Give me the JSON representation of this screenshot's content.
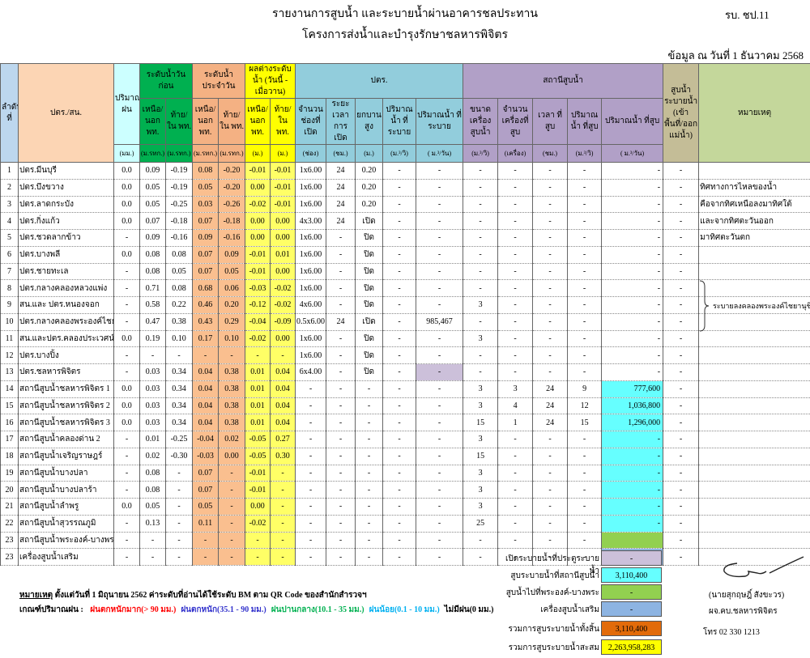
{
  "header": {
    "title": "รายงานการสูบน้ำ และระบายน้ำผ่านอาคารชลประทาน",
    "form_code": "รบ. ชป.11",
    "subtitle": "โครงการส่งน้ำและบำรุงรักษาชลหารพิจิตร",
    "date_info": "ข้อมูล ณ วันที่  1 ธันวาคม 2568"
  },
  "table": {
    "group_headers": [
      "ลำดับที่",
      "ปตร./สน.",
      "ปริมาณฝน",
      "ระดับน้ำวันก่อน",
      "ระดับน้ำประจำวัน",
      "ผลต่างระดับน้ำ (วันนี้ - เมื่อวาน)",
      "ปตร.",
      "สถานีสูบน้ำ",
      "สูบน้ำระบายน้ำ (เข้าพื้นที่/ออกแม่น้ำ)",
      "หมายเหตุ"
    ],
    "sub_headers": [
      "เหนือ/ นอก พท.",
      "ท้าย/ ใน พท.",
      "เหนือ/ นอก พท.",
      "ท้าย/ ใน พท.",
      "เหนือ/ นอก พท.",
      "ท้าย/ ใน พท.",
      "จำนวน ช่องที่เปิด",
      "ระยะเวลา การเปิด",
      "ยกบาน สูง",
      "ปริมาณน้ำ ที่ระบาย",
      "ปริมาณน้ำ ที่ระบาย",
      "ขนาดเครื่อง สูบน้ำ",
      "จำนวน เครื่องที่สูบ",
      "เวลา ที่สูบ",
      "ปริมาณน้ำ ที่สูบ",
      "ปริมาณน้ำ ที่สูบ"
    ],
    "units": [
      "(มม.)",
      "(ม.รทก.)",
      "(ม.รทก.)",
      "(ม.รทก.)",
      "(ม.รทก.)",
      "(ม.)",
      "(ม.)",
      "(ช่อง)",
      "(ชม.)",
      "(ม.)",
      "(ม.³/วิ)",
      "( ม.³/วัน)",
      "(ม.³/วิ)",
      "(เครื่อง)",
      "(ชม.)",
      "(ม.³/วิ)",
      "( ม.³/วัน)"
    ],
    "rows": [
      {
        "cells": [
          "1",
          "ปตร.มีนบุรี",
          "0.0",
          "0.09",
          "-0.19",
          "0.08",
          "-0.20",
          "-0.01",
          "-0.01",
          "1x6.00",
          "24",
          "0.20",
          "-",
          "-",
          "-",
          "-",
          "-",
          "-",
          "-",
          "-"
        ]
      },
      {
        "cells": [
          "2",
          "ปตร.บึงขวาง",
          "0.0",
          "0.05",
          "-0.19",
          "0.05",
          "-0.20",
          "0.00",
          "-0.01",
          "1x6.00",
          "24",
          "0.20",
          "-",
          "-",
          "-",
          "-",
          "-",
          "-",
          "-",
          "-"
        ],
        "remark": "ทิศทางการไหลของน้ำ"
      },
      {
        "cells": [
          "3",
          "ปตร.ลาดกระบัง",
          "0.0",
          "0.05",
          "-0.25",
          "0.03",
          "-0.26",
          "-0.02",
          "-0.01",
          "1x6.00",
          "24",
          "0.20",
          "-",
          "-",
          "-",
          "-",
          "-",
          "-",
          "-",
          "-"
        ],
        "remark": "คือจากทิศเหนือลงมาทิศใต้"
      },
      {
        "cells": [
          "4",
          "ปตร.กิ่งแก้ว",
          "0.0",
          "0.07",
          "-0.18",
          "0.07",
          "-0.18",
          "0.00",
          "0.00",
          "4x3.00",
          "24",
          "เปิด",
          "-",
          "-",
          "-",
          "-",
          "-",
          "-",
          "-",
          "-"
        ],
        "remark": "และจากทิศตะวันออก"
      },
      {
        "cells": [
          "5",
          "ปตร.ชวดลากข้าว",
          "-",
          "0.09",
          "-0.16",
          "0.09",
          "-0.16",
          "0.00",
          "0.00",
          "1x6.00",
          "-",
          "ปิด",
          "-",
          "-",
          "-",
          "-",
          "-",
          "-",
          "-",
          "-"
        ],
        "remark": "มาทิศตะวันตก"
      },
      {
        "cells": [
          "6",
          "ปตร.บางพลี",
          "0.0",
          "0.08",
          "0.08",
          "0.07",
          "0.09",
          "-0.01",
          "0.01",
          "1x6.00",
          "-",
          "ปิด",
          "-",
          "-",
          "-",
          "-",
          "-",
          "-",
          "-",
          "-"
        ]
      },
      {
        "cells": [
          "7",
          "ปตร.ชายทะเล",
          "-",
          "0.08",
          "0.05",
          "0.07",
          "0.05",
          "-0.01",
          "0.00",
          "1x6.00",
          "-",
          "ปิด",
          "-",
          "-",
          "-",
          "-",
          "-",
          "-",
          "-",
          "-"
        ]
      },
      {
        "cells": [
          "8",
          "ปตร.กลางคลองหลวงแพ่ง",
          "-",
          "0.71",
          "0.08",
          "0.68",
          "0.06",
          "-0.03",
          "-0.02",
          "1x6.00",
          "-",
          "ปิด",
          "-",
          "-",
          "-",
          "-",
          "-",
          "-",
          "-",
          "-"
        ]
      },
      {
        "cells": [
          "9",
          "สน.และ ปตร.หนองจอก",
          "-",
          "0.58",
          "0.22",
          "0.46",
          "0.20",
          "-0.12",
          "-0.02",
          "4x6.00",
          "-",
          "ปิด",
          "-",
          "-",
          "3",
          "-",
          "-",
          "-",
          "-",
          "-"
        ]
      },
      {
        "cells": [
          "10",
          "ปตร.กลางคลองพระองค์ไชยานุชิต",
          "-",
          "0.47",
          "0.38",
          "0.43",
          "0.29",
          "-0.04",
          "-0.09",
          "0.5x6.00",
          "24",
          "เปิด",
          "-",
          "985,467",
          "-",
          "-",
          "-",
          "-",
          "-",
          "-"
        ]
      },
      {
        "cells": [
          "11",
          "สน.และปตร.คลองประเวศน์ฯ",
          "0.0",
          "0.19",
          "0.10",
          "0.17",
          "0.10",
          "-0.02",
          "0.00",
          "1x6.00",
          "-",
          "ปิด",
          "-",
          "-",
          "3",
          "-",
          "-",
          "-",
          "-",
          "-"
        ]
      },
      {
        "cells": [
          "12",
          "ปตร.บางปิ้ง",
          "-",
          "-",
          "-",
          "-",
          "-",
          "-",
          "-",
          "1x6.00",
          "-",
          "ปิด",
          "-",
          "-",
          "-",
          "-",
          "-",
          "-",
          "-",
          "-"
        ]
      },
      {
        "cells": [
          "13",
          "ปตร.ชลหารพิจิตร",
          "-",
          "0.03",
          "0.34",
          "0.04",
          "0.38",
          "0.01",
          "0.04",
          "6x4.00",
          "-",
          "ปิด",
          "-",
          "-",
          "-",
          "-",
          "-",
          "-",
          "-",
          "-"
        ]
      },
      {
        "cells": [
          "14",
          "สถานีสูบน้ำชลหารพิจิตร 1",
          "0.0",
          "0.03",
          "0.34",
          "0.04",
          "0.38",
          "0.01",
          "0.04",
          "-",
          "-",
          "-",
          "-",
          "-",
          "3",
          "3",
          "24",
          "9",
          "777,600",
          "-"
        ]
      },
      {
        "cells": [
          "15",
          "สถานีสูบน้ำชลหารพิจิตร 2",
          "0.0",
          "0.03",
          "0.34",
          "0.04",
          "0.38",
          "0.01",
          "0.04",
          "-",
          "-",
          "-",
          "-",
          "-",
          "3",
          "4",
          "24",
          "12",
          "1,036,800",
          "-"
        ]
      },
      {
        "cells": [
          "16",
          "สถานีสูบน้ำชลหารพิจิตร 3",
          "0.0",
          "0.03",
          "0.34",
          "0.04",
          "0.38",
          "0.01",
          "0.04",
          "-",
          "-",
          "-",
          "-",
          "-",
          "15",
          "1",
          "24",
          "15",
          "1,296,000",
          "-"
        ]
      },
      {
        "cells": [
          "17",
          "สถานีสูบน้ำคลองด่าน 2",
          "-",
          "0.01",
          "-0.25",
          "-0.04",
          "0.02",
          "-0.05",
          "0.27",
          "-",
          "-",
          "-",
          "-",
          "-",
          "3",
          "-",
          "-",
          "-",
          "-",
          "-"
        ]
      },
      {
        "cells": [
          "18",
          "สถานีสูบน้ำเจริญราษฎร์",
          "-",
          "0.02",
          "-0.30",
          "-0.03",
          "0.00",
          "-0.05",
          "0.30",
          "-",
          "-",
          "-",
          "-",
          "-",
          "15",
          "-",
          "-",
          "-",
          "-",
          "-"
        ]
      },
      {
        "cells": [
          "19",
          "สถานีสูบน้ำบางปลา",
          "-",
          "0.08",
          "-",
          "0.07",
          "-",
          "-0.01",
          "-",
          "-",
          "-",
          "-",
          "-",
          "-",
          "3",
          "-",
          "-",
          "-",
          "-",
          "-"
        ]
      },
      {
        "cells": [
          "20",
          "สถานีสูบน้ำบางปลาร้า",
          "-",
          "0.08",
          "-",
          "0.07",
          "-",
          "-0.01",
          "-",
          "-",
          "-",
          "-",
          "-",
          "-",
          "3",
          "-",
          "-",
          "-",
          "-",
          "-"
        ]
      },
      {
        "cells": [
          "21",
          "สถานีสูบน้ำลำพรู",
          "0.0",
          "0.05",
          "-",
          "0.05",
          "-",
          "0.00",
          "-",
          "-",
          "-",
          "-",
          "-",
          "-",
          "3",
          "-",
          "-",
          "-",
          "-",
          "-"
        ]
      },
      {
        "cells": [
          "22",
          "สถานีสูบน้ำสุวรรณภูมิ",
          "-",
          "0.13",
          "-",
          "0.11",
          "-",
          "-0.02",
          "-",
          "-",
          "-",
          "-",
          "-",
          "-",
          "25",
          "-",
          "-",
          "-",
          "-",
          "-"
        ]
      },
      {
        "cells": [
          "23",
          "สถานีสูบน้ำพระองค์-บางพระ",
          "-",
          "-",
          "-",
          "-",
          "-",
          "-",
          "-",
          "-",
          "-",
          "-",
          "-",
          "-",
          "-",
          "-",
          "-",
          "-",
          null,
          "-"
        ]
      },
      {
        "cells": [
          "23",
          "เครื่องสูบน้ำเสริม",
          "-",
          "-",
          "-",
          "-",
          "-",
          "-",
          "-",
          "-",
          "-",
          "-",
          "-",
          "-",
          "-",
          "-",
          "-",
          "-",
          null,
          "-"
        ]
      }
    ],
    "merged_remark": "ระบายลงคลองพระองค์ไชยานุชิต"
  },
  "summary": [
    {
      "label": "เปิดระบายน้ำที่ประตูระบายน้ำ",
      "value": "-",
      "color": "#ccc0da"
    },
    {
      "label": "สูบระบายน้ำที่สถานีสูบน้ำ",
      "value": "3,110,400",
      "color": "#66ffff"
    },
    {
      "label": "สูบน้ำไปที่พระองค์-บางพระ",
      "value": "-",
      "color": "#92d050"
    },
    {
      "label": "เครื่องสูบน้ำเสริม",
      "value": "-",
      "color": "#8db4e2"
    },
    {
      "label": "รวมการสูบระบายน้ำทั้งสิ้น",
      "value": "3,110,400",
      "color": "#e26b0a"
    },
    {
      "label": "รวมการสูบระบายน้ำสะสม",
      "value": "2,263,958,283",
      "color": "#ffff00"
    }
  ],
  "notes": {
    "label": "หมายเหตุ",
    "text": "ตั้งแต่วันที่ 1  มิถุนายน  2562  ค่าระดับที่อ่านได้ใช้ระดับ BM  ตาม QR Code  ของสำนักสำรวจฯ"
  },
  "rain_criteria": {
    "label": "เกณฑ์ปริมาณฝน :",
    "levels": [
      {
        "text": "ฝนตกหนักมาก(> 90 มม.)",
        "color": "#ff0000"
      },
      {
        "text": "ฝนตกหนัก(35.1 - 90 มม.)",
        "color": "#3333cc"
      },
      {
        "text": "ฝนปานกลาง(10.1 - 35 มม.)",
        "color": "#00b050"
      },
      {
        "text": "ฝนน้อย(0.1 - 10 มม.)",
        "color": "#00b0f0"
      },
      {
        "text": "ไม่มีฝน(0 มม.)",
        "color": "#000000"
      }
    ]
  },
  "signature": {
    "name": "(นายสุกฤษฎิ์  สังขะวร)",
    "position": "ผจ.คบ.ชลหารพิจิตร",
    "phone": "โทร  02 330 1213"
  }
}
